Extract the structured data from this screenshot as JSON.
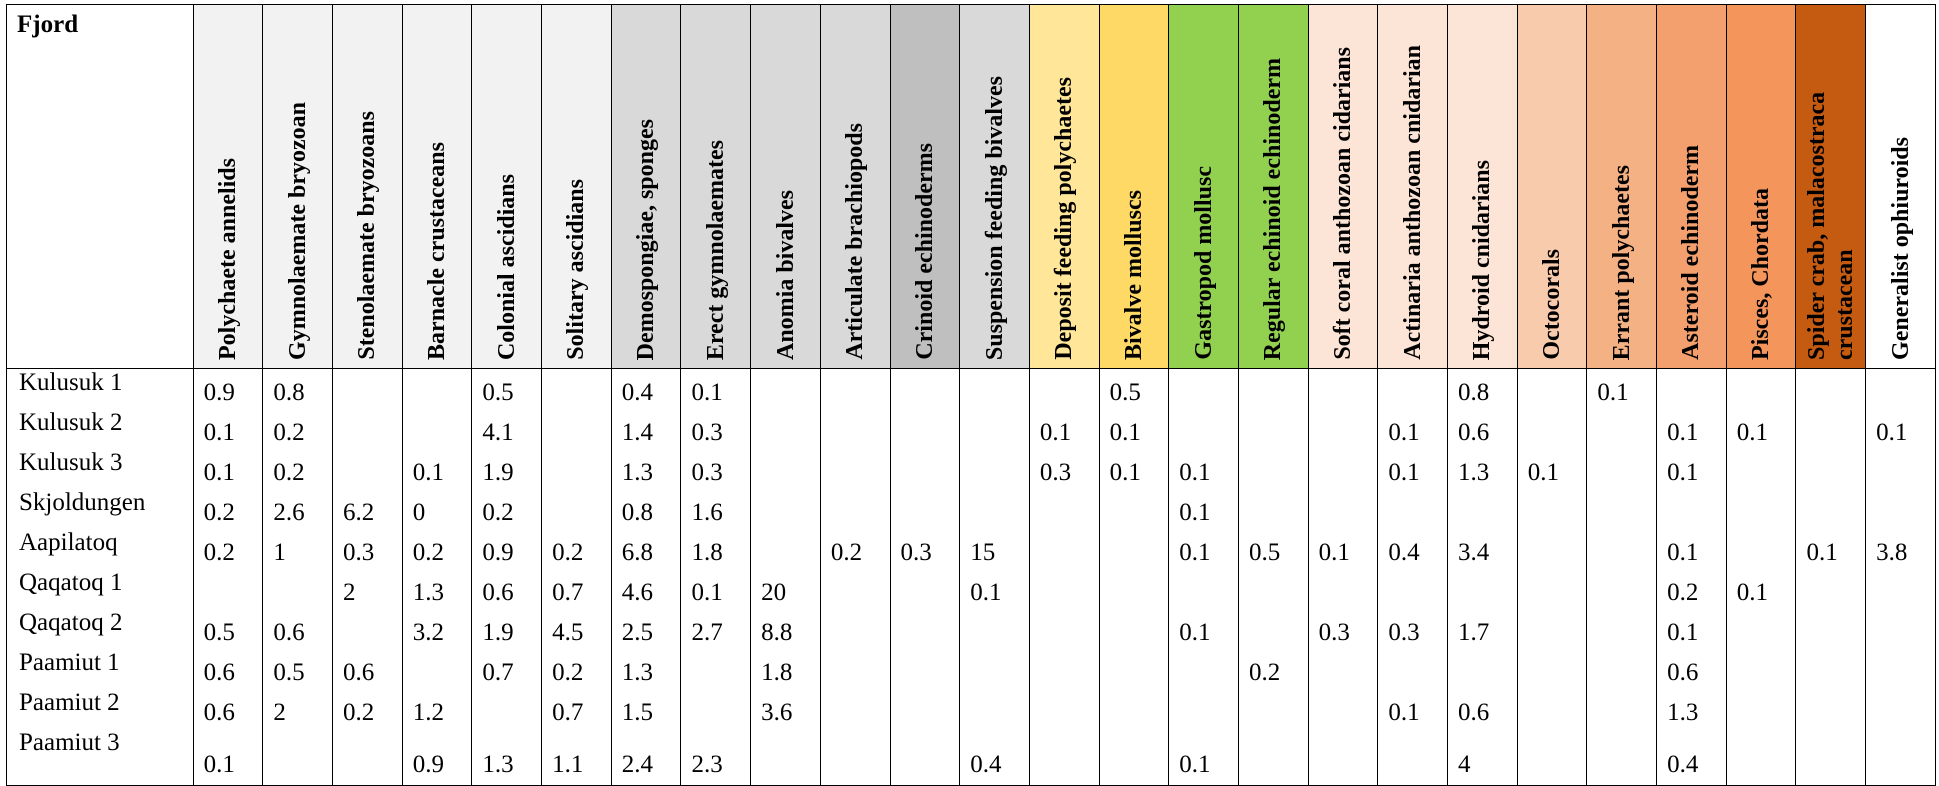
{
  "table": {
    "corner_label": "Fjord",
    "columns": [
      {
        "label": "Polychaete annelids",
        "bg": "#f2f2f2"
      },
      {
        "label": "Gymnolaemate bryozoan",
        "bg": "#f2f2f2"
      },
      {
        "label": "Stenolaemate bryozoans",
        "bg": "#f2f2f2"
      },
      {
        "label": "Barnacle crustaceans",
        "bg": "#f2f2f2"
      },
      {
        "label": "Colonial ascidians",
        "bg": "#f2f2f2"
      },
      {
        "label": "Solitary ascidians",
        "bg": "#f2f2f2"
      },
      {
        "label": "Demospongiae, sponges",
        "bg": "#d9d9d9"
      },
      {
        "label": "Erect gymnolaemates",
        "bg": "#d9d9d9"
      },
      {
        "label": "Anomia bivalves",
        "bg": "#d9d9d9"
      },
      {
        "label": "Articulate brachiopods",
        "bg": "#d9d9d9"
      },
      {
        "label": "Crinoid echinoderms",
        "bg": "#bfbfbf"
      },
      {
        "label": "Suspension feeding bivalves",
        "bg": "#d9d9d9"
      },
      {
        "label": "Deposit feeding polychaetes",
        "bg": "#ffe699"
      },
      {
        "label": "Bivalve molluscs",
        "bg": "#ffd966"
      },
      {
        "label": "Gastropod mollusc",
        "bg": "#92d050"
      },
      {
        "label": "Regular echinoid echinoderm",
        "bg": "#92d050"
      },
      {
        "label": "Soft coral anthozoan cidarians",
        "bg": "#fce4d6"
      },
      {
        "label": "Actinaria anthozoan cnidarian",
        "bg": "#fce4d6"
      },
      {
        "label": "Hydroid cnidarians",
        "bg": "#fce4d6"
      },
      {
        "label": "Octocorals",
        "bg": "#f8cbad"
      },
      {
        "label": "Errant polychaetes",
        "bg": "#f4b183"
      },
      {
        "label": "Asteroid echinoderm",
        "bg": "#f4a06e"
      },
      {
        "label": "Pisces, Chordata",
        "bg": "#f4955b"
      },
      {
        "label": "Spider crab, malacostraca crustacean",
        "bg": "#c55a11"
      },
      {
        "label": "Generalist ophiuroids",
        "bg": "#ffffff"
      }
    ],
    "rows": [
      {
        "name": "Kulusuk 1",
        "values": [
          "0.9",
          "0.8",
          "",
          "",
          "0.5",
          "",
          "0.4",
          "0.1",
          "",
          "",
          "",
          "",
          "",
          "0.5",
          "",
          "",
          "",
          "",
          "0.8",
          "",
          "0.1",
          "",
          "",
          "",
          ""
        ]
      },
      {
        "name": "Kulusuk 2",
        "values": [
          "0.1",
          "0.2",
          "",
          "",
          "4.1",
          "",
          "1.4",
          "0.3",
          "",
          "",
          "",
          "",
          "0.1",
          "0.1",
          "",
          "",
          "",
          "0.1",
          "0.6",
          "",
          "",
          "0.1",
          "0.1",
          "",
          "0.1"
        ]
      },
      {
        "name": "Kulusuk 3",
        "values": [
          "0.1",
          "0.2",
          "",
          "0.1",
          "1.9",
          "",
          "1.3",
          "0.3",
          "",
          "",
          "",
          "",
          "0.3",
          "0.1",
          "0.1",
          "",
          "",
          "0.1",
          "1.3",
          "0.1",
          "",
          "0.1",
          "",
          "",
          ""
        ]
      },
      {
        "name": "Skjoldungen",
        "values": [
          "0.2",
          "2.6",
          "6.2",
          "0",
          "0.2",
          "",
          "0.8",
          "1.6",
          "",
          "",
          "",
          "",
          "",
          "",
          "0.1",
          "",
          "",
          "",
          "",
          "",
          "",
          "",
          "",
          "",
          ""
        ]
      },
      {
        "name": "Aapilatoq",
        "values": [
          "0.2",
          "1",
          "0.3",
          "0.2",
          "0.9",
          "0.2",
          "6.8",
          "1.8",
          "",
          "0.2",
          "0.3",
          "15",
          "",
          "",
          "0.1",
          "0.5",
          "0.1",
          "0.4",
          "3.4",
          "",
          "",
          "0.1",
          "",
          "0.1",
          "3.8"
        ]
      },
      {
        "name": "Qaqatoq 1",
        "values": [
          "",
          "",
          "2",
          "1.3",
          "0.6",
          "0.7",
          "4.6",
          "0.1",
          "20",
          "",
          "",
          "0.1",
          "",
          "",
          "",
          "",
          "",
          "",
          "",
          "",
          "",
          "0.2",
          "0.1",
          "",
          ""
        ]
      },
      {
        "name": "Qaqatoq 2",
        "values": [
          "0.5",
          "0.6",
          "",
          "3.2",
          "1.9",
          "4.5",
          "2.5",
          "2.7",
          "8.8",
          "",
          "",
          "",
          "",
          "",
          "0.1",
          "",
          "0.3",
          "0.3",
          "1.7",
          "",
          "",
          "0.1",
          "",
          "",
          ""
        ]
      },
      {
        "name": "Paamiut 1",
        "values": [
          "0.6",
          "0.5",
          "0.6",
          "",
          "0.7",
          "0.2",
          "1.3",
          "",
          "1.8",
          "",
          "",
          "",
          "",
          "",
          "",
          "0.2",
          "",
          "",
          "",
          "",
          "",
          "0.6",
          "",
          "",
          ""
        ]
      },
      {
        "name": "Paamiut 2",
        "values": [
          "0.6",
          "2",
          "0.2",
          "1.2",
          "",
          "0.7",
          "1.5",
          "",
          "3.6",
          "",
          "",
          "",
          "",
          "",
          "",
          "",
          "",
          "0.1",
          "0.6",
          "",
          "",
          "1.3",
          "",
          "",
          ""
        ]
      },
      {
        "name": "Paamiut 3",
        "values": [
          "0.1",
          "",
          "",
          "0.9",
          "1.3",
          "1.1",
          "2.4",
          "2.3",
          "",
          "",
          "",
          "0.4",
          "",
          "",
          "0.1",
          "",
          "",
          "",
          "4",
          "",
          "",
          "0.4",
          "",
          "",
          ""
        ]
      }
    ]
  }
}
